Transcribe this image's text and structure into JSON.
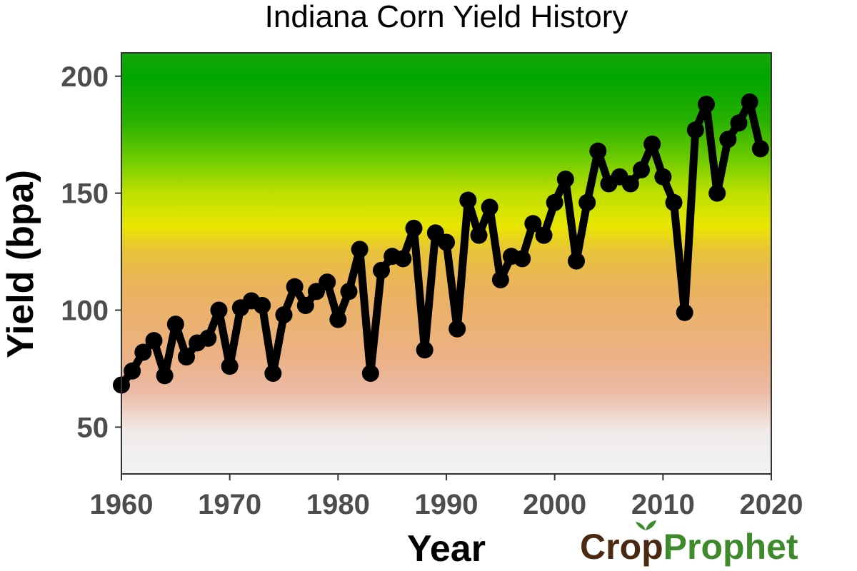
{
  "chart_data": {
    "type": "line",
    "title": "Indiana Corn Yield History",
    "xlabel": "Year",
    "ylabel": "Yield (bpa)",
    "xlim": [
      1960,
      2020
    ],
    "ylim": [
      30,
      210
    ],
    "x_ticks": [
      1960,
      1970,
      1980,
      1990,
      2000,
      2010,
      2020
    ],
    "y_ticks": [
      50,
      100,
      150,
      200
    ],
    "grid": false,
    "legend": "none",
    "series": [
      {
        "x": [
          1960,
          1961,
          1962,
          1963,
          1964,
          1965,
          1966,
          1967,
          1968,
          1969,
          1970,
          1971,
          1972,
          1973,
          1974,
          1975,
          1976,
          1977,
          1978,
          1979,
          1980,
          1981,
          1982,
          1983,
          1984,
          1985,
          1986,
          1987,
          1988,
          1989,
          1990,
          1991,
          1992,
          1993,
          1994,
          1995,
          1996,
          1997,
          1998,
          1999,
          2000,
          2001,
          2002,
          2003,
          2004,
          2005,
          2006,
          2007,
          2008,
          2009,
          2010,
          2011,
          2012,
          2013,
          2014,
          2015,
          2016,
          2017,
          2018,
          2019
        ],
        "y": [
          68,
          74,
          82,
          87,
          72,
          94,
          80,
          86,
          88,
          100,
          76,
          101,
          104,
          102,
          73,
          98,
          110,
          102,
          108,
          112,
          96,
          108,
          126,
          73,
          117,
          123,
          122,
          135,
          83,
          133,
          129,
          92,
          147,
          132,
          144,
          113,
          123,
          122,
          137,
          132,
          146,
          156,
          121,
          146,
          168,
          154,
          157,
          154,
          160,
          171,
          157,
          146,
          99,
          177,
          188,
          150,
          173,
          180,
          189,
          169
        ]
      }
    ],
    "line_color": "#000000",
    "background_gradient": [
      {
        "value": 30,
        "color": "#f2f2f2"
      },
      {
        "value": 48,
        "color": "#f0ebea"
      },
      {
        "value": 65,
        "color": "#ebbaa5"
      },
      {
        "value": 80,
        "color": "#ecb185"
      },
      {
        "value": 110,
        "color": "#eab35e"
      },
      {
        "value": 125,
        "color": "#e8c23a"
      },
      {
        "value": 136,
        "color": "#e8e600"
      },
      {
        "value": 150,
        "color": "#bde000"
      },
      {
        "value": 165,
        "color": "#6ccb00"
      },
      {
        "value": 180,
        "color": "#2bb200"
      },
      {
        "value": 200,
        "color": "#00a500"
      },
      {
        "value": 210,
        "color": "#16a60b"
      }
    ]
  },
  "brand": {
    "part1": "Cr",
    "o_glyph": "o",
    "part2": "p",
    "part3": "Prophet",
    "dark_color": "#4a2a12",
    "green_color": "#3f8a2c"
  }
}
